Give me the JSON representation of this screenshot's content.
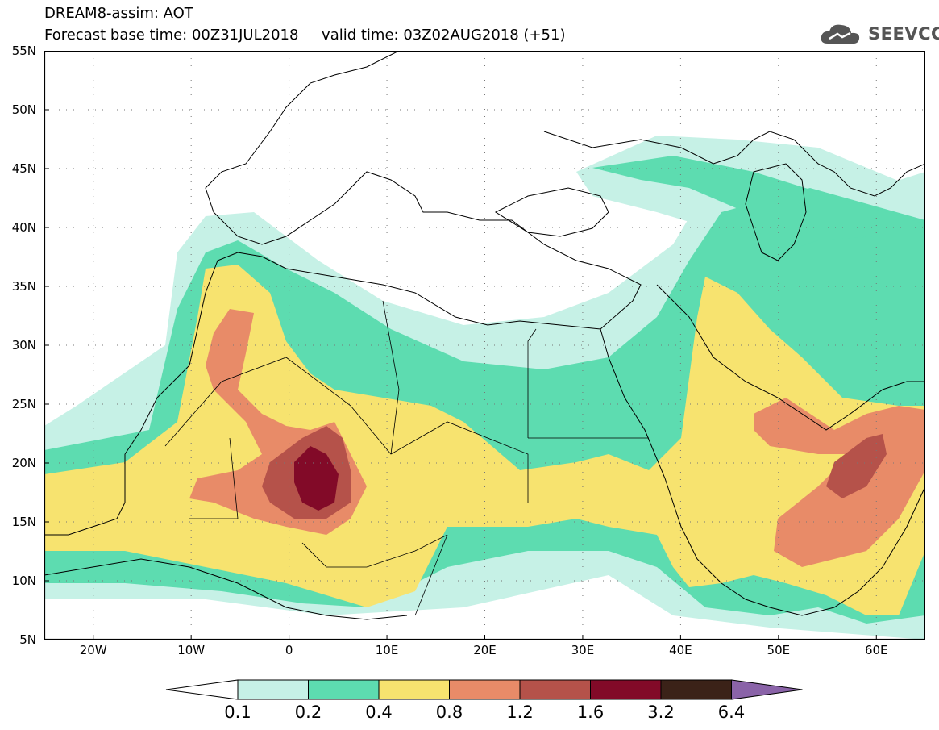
{
  "header": {
    "title_line1": "DREAM8-assim: AOT",
    "title_line2": "Forecast base time: 00Z31JUL2018     valid time: 03Z02AUG2018 (+51)"
  },
  "logo": {
    "text": "SEEVCCC",
    "icon": "cloud-icon"
  },
  "map": {
    "projection": "lat-lon",
    "lon_range": [
      -25,
      65
    ],
    "lat_range": [
      5,
      55
    ],
    "grid": "dotted",
    "y_ticks": [
      {
        "value": 55,
        "label": "55N"
      },
      {
        "value": 50,
        "label": "50N"
      },
      {
        "value": 45,
        "label": "45N"
      },
      {
        "value": 40,
        "label": "40N"
      },
      {
        "value": 35,
        "label": "35N"
      },
      {
        "value": 30,
        "label": "30N"
      },
      {
        "value": 25,
        "label": "25N"
      },
      {
        "value": 20,
        "label": "20N"
      },
      {
        "value": 15,
        "label": "15N"
      },
      {
        "value": 10,
        "label": "10N"
      },
      {
        "value": 5,
        "label": "5N"
      }
    ],
    "x_ticks": [
      {
        "value": -20,
        "label": "20W"
      },
      {
        "value": -10,
        "label": "10W"
      },
      {
        "value": 0,
        "label": "0"
      },
      {
        "value": 10,
        "label": "10E"
      },
      {
        "value": 20,
        "label": "20E"
      },
      {
        "value": 30,
        "label": "30E"
      },
      {
        "value": 40,
        "label": "40E"
      },
      {
        "value": 50,
        "label": "50E"
      },
      {
        "value": 60,
        "label": "60E"
      }
    ]
  },
  "legend": {
    "colors": {
      "lt0.1": "#ffffff",
      "0.1-0.2": "#c6f1e6",
      "0.2-0.4": "#5ddcb0",
      "0.4-0.8": "#f7e36f",
      "0.8-1.2": "#e88b68",
      "1.2-1.6": "#b5524a",
      "1.6-3.2": "#820a28",
      "3.2-6.4": "#3b2218",
      "gt6.4": "#8a63a8"
    },
    "labels": [
      "0.1",
      "0.2",
      "0.4",
      "0.8",
      "1.2",
      "1.6",
      "3.2",
      "6.4"
    ]
  }
}
